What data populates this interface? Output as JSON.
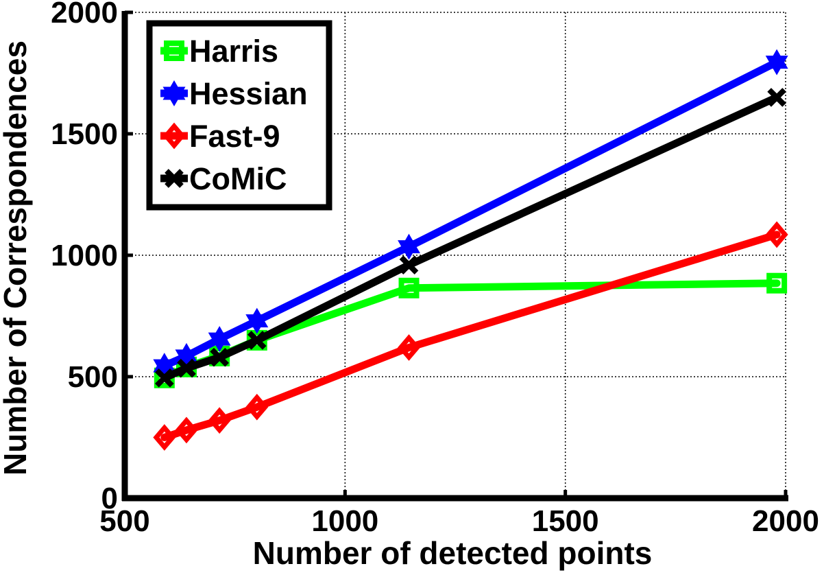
{
  "chart_data": {
    "type": "line",
    "title": "",
    "xlabel": "Number of detected points",
    "ylabel": "Number of Correspondences",
    "xlim": [
      500,
      2000
    ],
    "ylim": [
      0,
      2000
    ],
    "x_ticks": [
      "500",
      "1000",
      "1500",
      "2000"
    ],
    "y_ticks": [
      "0",
      "500",
      "1000",
      "1500",
      "2000"
    ],
    "grid": true,
    "legend_position": "top-left",
    "series": [
      {
        "name": "Harris",
        "color": "#00ff00",
        "marker": "square",
        "points": [
          [
            590,
            495
          ],
          [
            640,
            540
          ],
          [
            715,
            585
          ],
          [
            800,
            650
          ],
          [
            1145,
            865
          ],
          [
            1980,
            885
          ]
        ]
      },
      {
        "name": "Hessian",
        "color": "#0000ff",
        "marker": "hexagram",
        "points": [
          [
            590,
            545
          ],
          [
            640,
            585
          ],
          [
            715,
            655
          ],
          [
            800,
            730
          ],
          [
            1145,
            1035
          ],
          [
            1980,
            1795
          ]
        ]
      },
      {
        "name": "Fast-9",
        "color": "#ff0000",
        "marker": "diamond",
        "points": [
          [
            590,
            250
          ],
          [
            640,
            280
          ],
          [
            715,
            320
          ],
          [
            800,
            375
          ],
          [
            1145,
            620
          ],
          [
            1980,
            1085
          ]
        ]
      },
      {
        "name": "CoMiC",
        "color": "#000000",
        "marker": "x",
        "points": [
          [
            590,
            495
          ],
          [
            640,
            535
          ],
          [
            715,
            580
          ],
          [
            800,
            650
          ],
          [
            1145,
            960
          ],
          [
            1980,
            1650
          ]
        ]
      }
    ]
  }
}
